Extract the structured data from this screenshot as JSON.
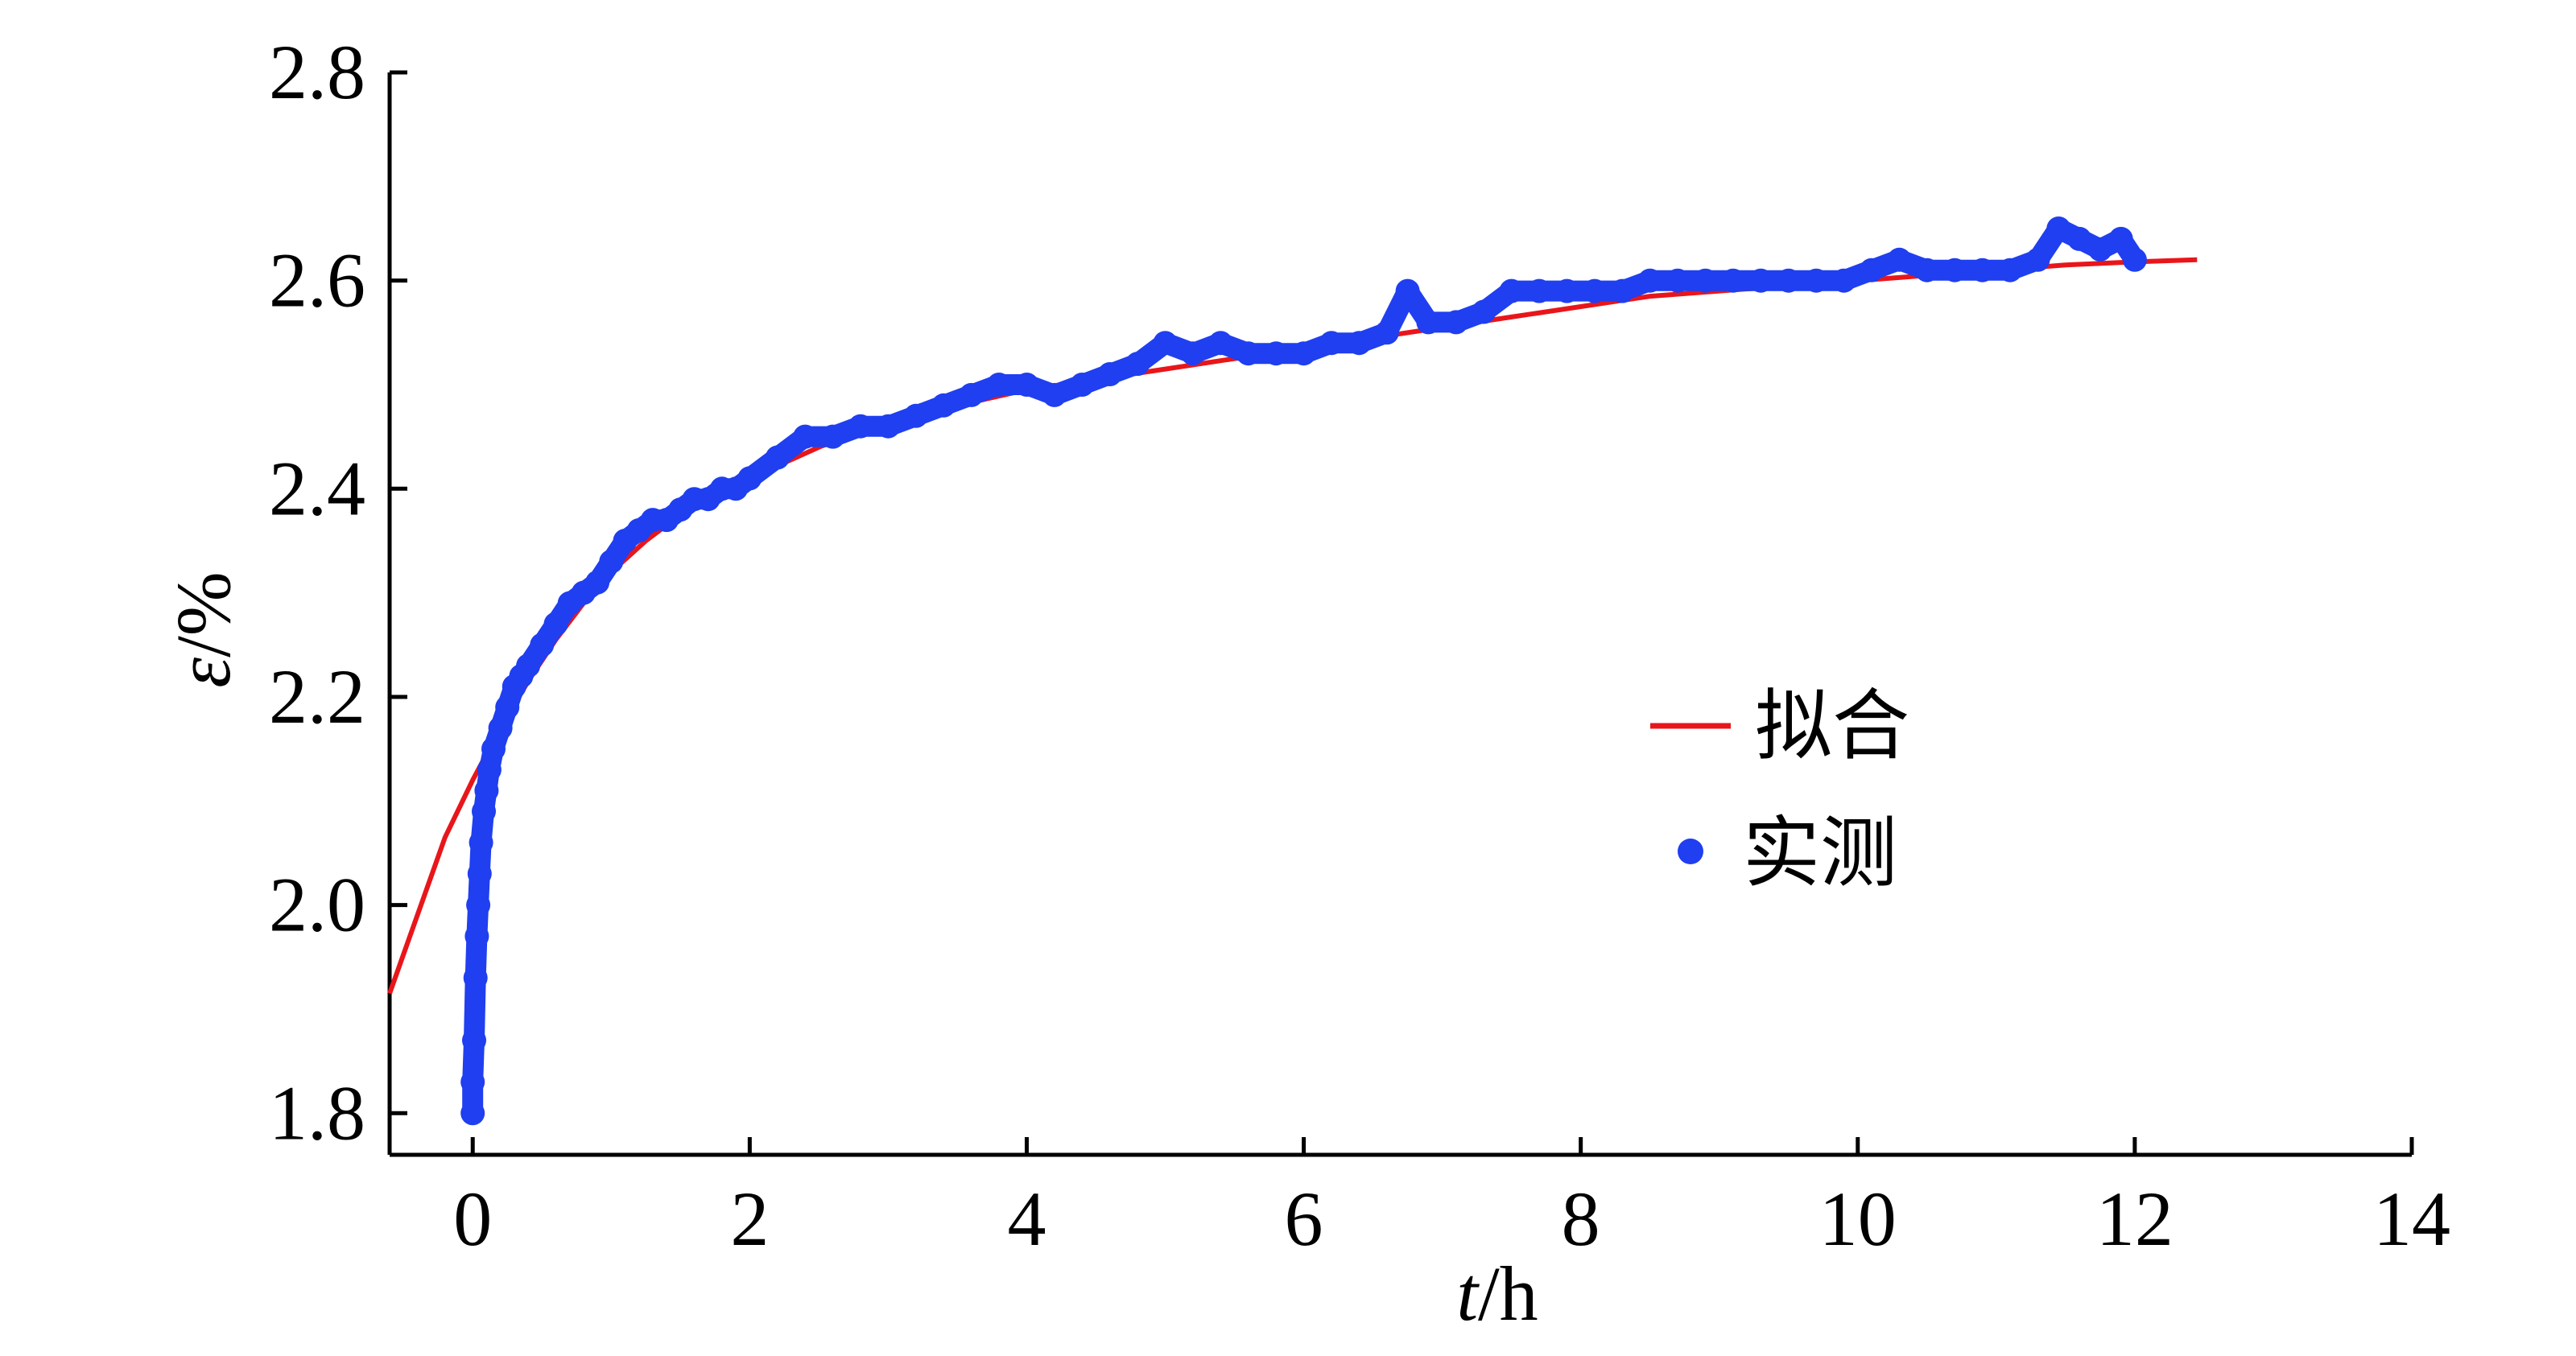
{
  "chart_data": {
    "type": "scatter",
    "xlabel": {
      "italic": "t",
      "rest": "/h"
    },
    "ylabel": {
      "italic": "ε",
      "rest": "/%"
    },
    "xlim": [
      -0.6,
      14
    ],
    "ylim": [
      1.76,
      2.8
    ],
    "xticks": [
      0,
      2,
      4,
      6,
      8,
      10,
      12,
      14
    ],
    "yticks": [
      1.8,
      2.0,
      2.2,
      2.4,
      2.6,
      2.8
    ],
    "x_tick_labels": [
      "0",
      "2",
      "4",
      "6",
      "8",
      "10",
      "12",
      "14"
    ],
    "y_tick_labels": [
      "1.8",
      "2.0",
      "2.2",
      "2.4",
      "2.6",
      "2.8"
    ],
    "grid": false,
    "legend": {
      "position": "center-right"
    },
    "colors": {
      "fit": "#e8161b",
      "measured": "#1f3ff0"
    },
    "series": [
      {
        "name": "拟合",
        "kind": "line",
        "x": [
          -0.6,
          -0.4,
          -0.2,
          0.0,
          0.2,
          0.4,
          0.6,
          0.8,
          1.0,
          1.25,
          1.5,
          2.0,
          2.5,
          3.0,
          3.5,
          4.0,
          4.5,
          5.0,
          5.5,
          6.0,
          6.5,
          7.0,
          7.5,
          8.0,
          8.5,
          9.0,
          9.5,
          10.0,
          10.5,
          11.0,
          11.5,
          12.0,
          12.45
        ],
        "y": [
          1.915,
          1.99,
          2.065,
          2.12,
          2.17,
          2.215,
          2.255,
          2.29,
          2.32,
          2.35,
          2.375,
          2.41,
          2.44,
          2.465,
          2.48,
          2.495,
          2.505,
          2.515,
          2.525,
          2.535,
          2.545,
          2.555,
          2.565,
          2.575,
          2.585,
          2.59,
          2.595,
          2.6,
          2.605,
          2.61,
          2.615,
          2.618,
          2.62
        ]
      },
      {
        "name": "实测",
        "kind": "scatter",
        "x": [
          0.0,
          0.0,
          0.01,
          0.02,
          0.03,
          0.04,
          0.05,
          0.06,
          0.08,
          0.1,
          0.12,
          0.15,
          0.2,
          0.25,
          0.3,
          0.35,
          0.4,
          0.5,
          0.6,
          0.7,
          0.8,
          0.9,
          1.0,
          1.1,
          1.2,
          1.3,
          1.4,
          1.5,
          1.6,
          1.7,
          1.8,
          1.9,
          2.0,
          2.2,
          2.4,
          2.6,
          2.8,
          3.0,
          3.2,
          3.4,
          3.6,
          3.8,
          4.0,
          4.2,
          4.4,
          4.6,
          4.8,
          5.0,
          5.2,
          5.4,
          5.6,
          5.8,
          6.0,
          6.2,
          6.4,
          6.6,
          6.75,
          6.9,
          7.1,
          7.3,
          7.5,
          7.7,
          7.9,
          8.1,
          8.3,
          8.5,
          8.7,
          8.9,
          9.1,
          9.3,
          9.5,
          9.7,
          9.9,
          10.1,
          10.3,
          10.5,
          10.7,
          10.9,
          11.1,
          11.3,
          11.45,
          11.6,
          11.75,
          11.9,
          12.0
        ],
        "y": [
          1.8,
          1.83,
          1.87,
          1.93,
          1.97,
          2.0,
          2.03,
          2.06,
          2.09,
          2.11,
          2.13,
          2.15,
          2.17,
          2.19,
          2.21,
          2.22,
          2.23,
          2.25,
          2.27,
          2.29,
          2.3,
          2.31,
          2.33,
          2.35,
          2.36,
          2.37,
          2.37,
          2.38,
          2.39,
          2.39,
          2.4,
          2.4,
          2.41,
          2.43,
          2.45,
          2.45,
          2.46,
          2.46,
          2.47,
          2.48,
          2.49,
          2.5,
          2.5,
          2.49,
          2.5,
          2.51,
          2.52,
          2.54,
          2.53,
          2.54,
          2.53,
          2.53,
          2.53,
          2.54,
          2.54,
          2.55,
          2.59,
          2.56,
          2.56,
          2.57,
          2.59,
          2.59,
          2.59,
          2.59,
          2.59,
          2.6,
          2.6,
          2.6,
          2.6,
          2.6,
          2.6,
          2.6,
          2.6,
          2.61,
          2.62,
          2.61,
          2.61,
          2.61,
          2.61,
          2.62,
          2.65,
          2.64,
          2.63,
          2.64,
          2.62
        ]
      }
    ]
  }
}
